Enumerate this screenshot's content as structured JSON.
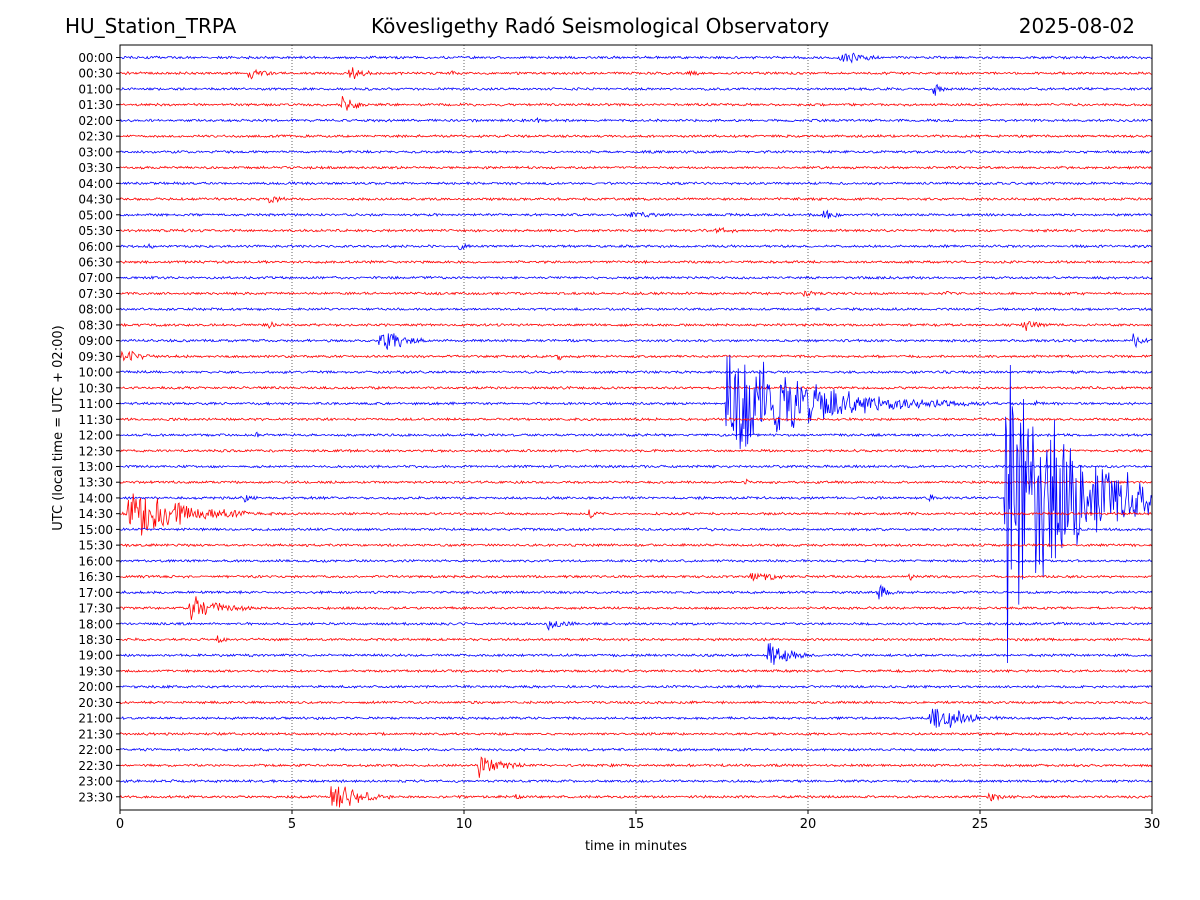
{
  "header": {
    "station": "HU_Station_TRPA",
    "observatory": "Kövesligethy Radó Seismological Observatory",
    "date": "2025-08-02"
  },
  "chart_data": {
    "type": "line",
    "title": "Kövesligethy Radó Seismological Observatory",
    "xlabel": "time in minutes",
    "ylabel": "UTC (local time = UTC + 02:00)",
    "xlim": [
      0,
      30
    ],
    "xticks": [
      0,
      5,
      10,
      15,
      20,
      25,
      30
    ],
    "grid": "vertical dotted lines at 5-minute intervals",
    "trace_colors": [
      "#0000ff",
      "#ff0000"
    ],
    "rows": [
      "00:00",
      "00:30",
      "01:00",
      "01:30",
      "02:00",
      "02:30",
      "03:00",
      "03:30",
      "04:00",
      "04:30",
      "05:00",
      "05:30",
      "06:00",
      "06:30",
      "07:00",
      "07:30",
      "08:00",
      "08:30",
      "09:00",
      "09:30",
      "10:00",
      "10:30",
      "11:00",
      "11:30",
      "12:00",
      "12:30",
      "13:00",
      "13:30",
      "14:00",
      "14:30",
      "15:00",
      "15:30",
      "16:00",
      "16:30",
      "17:00",
      "17:30",
      "18:00",
      "18:30",
      "19:00",
      "19:30",
      "20:00",
      "20:30",
      "21:00",
      "21:30",
      "22:00",
      "22:30",
      "23:00",
      "23:30"
    ],
    "events": [
      {
        "row": "00:00",
        "t": 20.9,
        "amp": 0.6,
        "dur": 2.0
      },
      {
        "row": "00:30",
        "t": 3.7,
        "amp": 0.45,
        "dur": 1.6
      },
      {
        "row": "00:30",
        "t": 6.6,
        "amp": 0.75,
        "dur": 1.2
      },
      {
        "row": "00:30",
        "t": 9.6,
        "amp": 0.3,
        "dur": 0.6
      },
      {
        "row": "00:30",
        "t": 16.5,
        "amp": 0.3,
        "dur": 0.9
      },
      {
        "row": "01:00",
        "t": 23.6,
        "amp": 0.65,
        "dur": 0.9
      },
      {
        "row": "01:30",
        "t": 6.4,
        "amp": 0.85,
        "dur": 1.2
      },
      {
        "row": "01:30",
        "t": 11.7,
        "amp": 0.2,
        "dur": 0.5
      },
      {
        "row": "02:00",
        "t": 12.1,
        "amp": 0.35,
        "dur": 0.5
      },
      {
        "row": "04:30",
        "t": 4.3,
        "amp": 0.35,
        "dur": 1.5
      },
      {
        "row": "05:00",
        "t": 14.8,
        "amp": 0.3,
        "dur": 2.5
      },
      {
        "row": "05:00",
        "t": 20.4,
        "amp": 0.45,
        "dur": 1.3
      },
      {
        "row": "05:30",
        "t": 17.3,
        "amp": 0.3,
        "dur": 2.0
      },
      {
        "row": "06:00",
        "t": 0.8,
        "amp": 0.45,
        "dur": 0.4
      },
      {
        "row": "06:00",
        "t": 9.8,
        "amp": 0.3,
        "dur": 1.8
      },
      {
        "row": "07:30",
        "t": 19.8,
        "amp": 0.3,
        "dur": 1.5
      },
      {
        "row": "07:30",
        "t": 24.0,
        "amp": 0.3,
        "dur": 0.5
      },
      {
        "row": "08:30",
        "t": 4.3,
        "amp": 0.35,
        "dur": 0.6
      },
      {
        "row": "08:30",
        "t": 26.2,
        "amp": 0.6,
        "dur": 1.5
      },
      {
        "row": "09:00",
        "t": 7.5,
        "amp": 1.1,
        "dur": 2.0
      },
      {
        "row": "09:00",
        "t": 29.4,
        "amp": 0.7,
        "dur": 0.8
      },
      {
        "row": "09:30",
        "t": 0.0,
        "amp": 0.7,
        "dur": 1.6
      },
      {
        "row": "09:30",
        "t": 12.7,
        "amp": 0.55,
        "dur": 0.3
      },
      {
        "row": "11:00",
        "t": 17.6,
        "amp": 5.0,
        "dur": 6.0
      },
      {
        "row": "11:00",
        "t": 26.6,
        "amp": 0.5,
        "dur": 0.5
      },
      {
        "row": "12:00",
        "t": 3.9,
        "amp": 0.35,
        "dur": 0.5
      },
      {
        "row": "13:30",
        "t": 18.1,
        "amp": 0.45,
        "dur": 0.5
      },
      {
        "row": "14:00",
        "t": 3.5,
        "amp": 0.6,
        "dur": 0.9
      },
      {
        "row": "14:00",
        "t": 23.5,
        "amp": 0.45,
        "dur": 0.4
      },
      {
        "row": "14:00",
        "t": 25.7,
        "amp": 13.0,
        "dur": 5.0
      },
      {
        "row": "14:30",
        "t": 0.2,
        "amp": 2.3,
        "dur": 4.0
      },
      {
        "row": "14:30",
        "t": 13.6,
        "amp": 0.55,
        "dur": 0.5
      },
      {
        "row": "15:00",
        "t": 17.0,
        "amp": 0.2,
        "dur": 1.3
      },
      {
        "row": "16:30",
        "t": 18.3,
        "amp": 0.4,
        "dur": 2.8
      },
      {
        "row": "16:30",
        "t": 22.9,
        "amp": 0.45,
        "dur": 0.5
      },
      {
        "row": "17:00",
        "t": 22.0,
        "amp": 0.85,
        "dur": 0.8
      },
      {
        "row": "17:30",
        "t": 2.0,
        "amp": 1.0,
        "dur": 2.5
      },
      {
        "row": "18:00",
        "t": 12.4,
        "amp": 0.6,
        "dur": 1.5
      },
      {
        "row": "18:30",
        "t": 2.8,
        "amp": 0.35,
        "dur": 0.8
      },
      {
        "row": "19:00",
        "t": 18.8,
        "amp": 1.2,
        "dur": 1.6
      },
      {
        "row": "21:00",
        "t": 23.5,
        "amp": 1.4,
        "dur": 2.5
      },
      {
        "row": "22:30",
        "t": 10.4,
        "amp": 1.1,
        "dur": 1.8
      },
      {
        "row": "23:30",
        "t": 6.1,
        "amp": 1.3,
        "dur": 2.2
      },
      {
        "row": "23:30",
        "t": 11.4,
        "amp": 0.45,
        "dur": 0.6
      },
      {
        "row": "23:30",
        "t": 25.2,
        "amp": 0.45,
        "dur": 1.5
      }
    ]
  }
}
